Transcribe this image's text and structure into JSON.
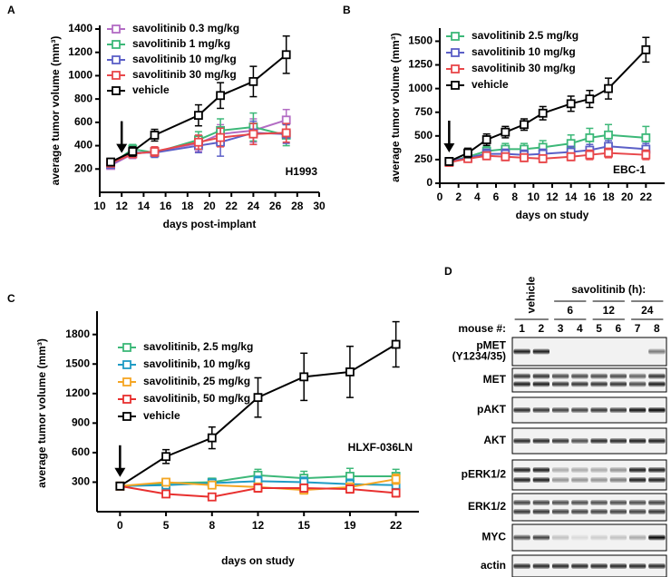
{
  "chart_data": [
    {
      "type": "line",
      "label": "A",
      "xlabel": "days post-implant",
      "ylabel": "average tumor volume (mm³)",
      "annotation": "H1993",
      "arrow_x": 12,
      "x": [
        11,
        13,
        15,
        19,
        21,
        24,
        27
      ],
      "xlim": [
        10,
        30
      ],
      "xticks": [
        10,
        12,
        14,
        16,
        18,
        20,
        22,
        24,
        26,
        28,
        30
      ],
      "ylim": [
        0,
        1400
      ],
      "yticks": [
        200,
        400,
        600,
        800,
        1000,
        1200,
        1400
      ],
      "series": [
        {
          "name": "savolitinib 0.3 mg/kg",
          "color": "#b36cc4",
          "values": [
            230,
            330,
            350,
            420,
            500,
            530,
            620
          ],
          "errors": [
            20,
            40,
            40,
            70,
            80,
            100,
            90
          ]
        },
        {
          "name": "savolitinib 1 mg/kg",
          "color": "#3cb878",
          "values": [
            240,
            370,
            340,
            450,
            530,
            560,
            490
          ],
          "errors": [
            20,
            40,
            40,
            70,
            100,
            120,
            90
          ]
        },
        {
          "name": "savolitinib 10 mg/kg",
          "color": "#5b5fc7",
          "values": [
            240,
            340,
            340,
            400,
            430,
            510,
            500
          ],
          "errors": [
            20,
            40,
            40,
            60,
            120,
            100,
            80
          ]
        },
        {
          "name": "savolitinib 30 mg/kg",
          "color": "#e8474a",
          "values": [
            250,
            330,
            350,
            430,
            470,
            500,
            510
          ],
          "errors": [
            20,
            30,
            40,
            60,
            80,
            90,
            80
          ]
        },
        {
          "name": "vehicle",
          "color": "#000000",
          "values": [
            260,
            350,
            490,
            660,
            830,
            950,
            1180
          ],
          "errors": [
            30,
            40,
            50,
            90,
            110,
            130,
            160
          ]
        }
      ]
    },
    {
      "type": "line",
      "label": "B",
      "xlabel": "days on study",
      "ylabel": "average tumor volume (mm³)",
      "annotation": "EBC-1",
      "arrow_x": 1,
      "x": [
        1,
        3,
        5,
        7,
        9,
        11,
        14,
        16,
        18,
        22
      ],
      "xlim": [
        0,
        24
      ],
      "xticks": [
        0,
        2,
        4,
        6,
        8,
        10,
        12,
        14,
        16,
        18,
        20,
        22
      ],
      "ylim": [
        0,
        1600
      ],
      "yticks": [
        0,
        250,
        500,
        750,
        1000,
        1250,
        1500
      ],
      "series": [
        {
          "name": "savolitinib 2.5 mg/kg",
          "color": "#3cb878",
          "values": [
            230,
            280,
            340,
            360,
            360,
            380,
            420,
            480,
            510,
            480
          ],
          "errors": [
            30,
            40,
            50,
            60,
            60,
            70,
            90,
            100,
            110,
            120
          ]
        },
        {
          "name": "savolitinib 10 mg/kg",
          "color": "#5b5fc7",
          "values": [
            230,
            270,
            310,
            310,
            300,
            310,
            330,
            350,
            390,
            360
          ],
          "errors": [
            30,
            40,
            50,
            50,
            50,
            50,
            60,
            60,
            60,
            60
          ]
        },
        {
          "name": "savolitinib 30 mg/kg",
          "color": "#e8474a",
          "values": [
            220,
            260,
            290,
            280,
            270,
            260,
            280,
            300,
            320,
            300
          ],
          "errors": [
            30,
            30,
            40,
            40,
            40,
            40,
            40,
            50,
            50,
            50
          ]
        },
        {
          "name": "vehicle",
          "color": "#000000",
          "values": [
            230,
            320,
            460,
            540,
            620,
            740,
            840,
            890,
            1000,
            1410
          ],
          "errors": [
            40,
            50,
            60,
            60,
            60,
            70,
            80,
            90,
            110,
            130
          ]
        }
      ]
    },
    {
      "type": "line",
      "label": "C",
      "xlabel": "days on study",
      "ylabel": "average tumor volume (mm³)",
      "annotation": "HLXF-036LN",
      "arrow_x": 0,
      "categories": [
        "0",
        "5",
        "8",
        "12",
        "15",
        "19",
        "22"
      ],
      "ylim": [
        0,
        2000
      ],
      "yticks": [
        300,
        600,
        900,
        1200,
        1500,
        1800
      ],
      "series": [
        {
          "name": "savolitinib, 2.5 mg/kg",
          "color": "#3cb878",
          "values": [
            260,
            290,
            300,
            370,
            340,
            360,
            360
          ],
          "errors": [
            20,
            40,
            40,
            60,
            70,
            80,
            70
          ]
        },
        {
          "name": "savolitinib, 10 mg/kg",
          "color": "#1f9bc4",
          "values": [
            260,
            270,
            290,
            310,
            300,
            280,
            270
          ],
          "errors": [
            20,
            30,
            40,
            50,
            50,
            50,
            50
          ]
        },
        {
          "name": "savolitinib, 25 mg/kg",
          "color": "#f5a623",
          "values": [
            260,
            300,
            270,
            250,
            220,
            250,
            330
          ],
          "errors": [
            20,
            30,
            30,
            40,
            40,
            40,
            50
          ]
        },
        {
          "name": "savolitinib, 50 mg/kg",
          "color": "#e8302f",
          "values": [
            260,
            180,
            150,
            240,
            240,
            230,
            190
          ],
          "errors": [
            20,
            30,
            30,
            40,
            40,
            40,
            40
          ]
        },
        {
          "name": "vehicle",
          "color": "#000000",
          "values": [
            260,
            560,
            750,
            1160,
            1370,
            1420,
            1700
          ],
          "errors": [
            30,
            70,
            110,
            200,
            240,
            260,
            230
          ]
        }
      ]
    }
  ],
  "blot": {
    "label": "D",
    "vehicle": "vehicle",
    "treatment": "savolitinib (h):",
    "times": [
      "6",
      "12",
      "24"
    ],
    "mouse_label": "mouse #:",
    "lanes": [
      "1",
      "2",
      "3",
      "4",
      "5",
      "6",
      "7",
      "8"
    ],
    "rows": [
      "pMET\n(Y1234/35)",
      "MET",
      "pAKT",
      "AKT",
      "pERK1/2",
      "ERK1/2",
      "MYC",
      "actin"
    ]
  }
}
